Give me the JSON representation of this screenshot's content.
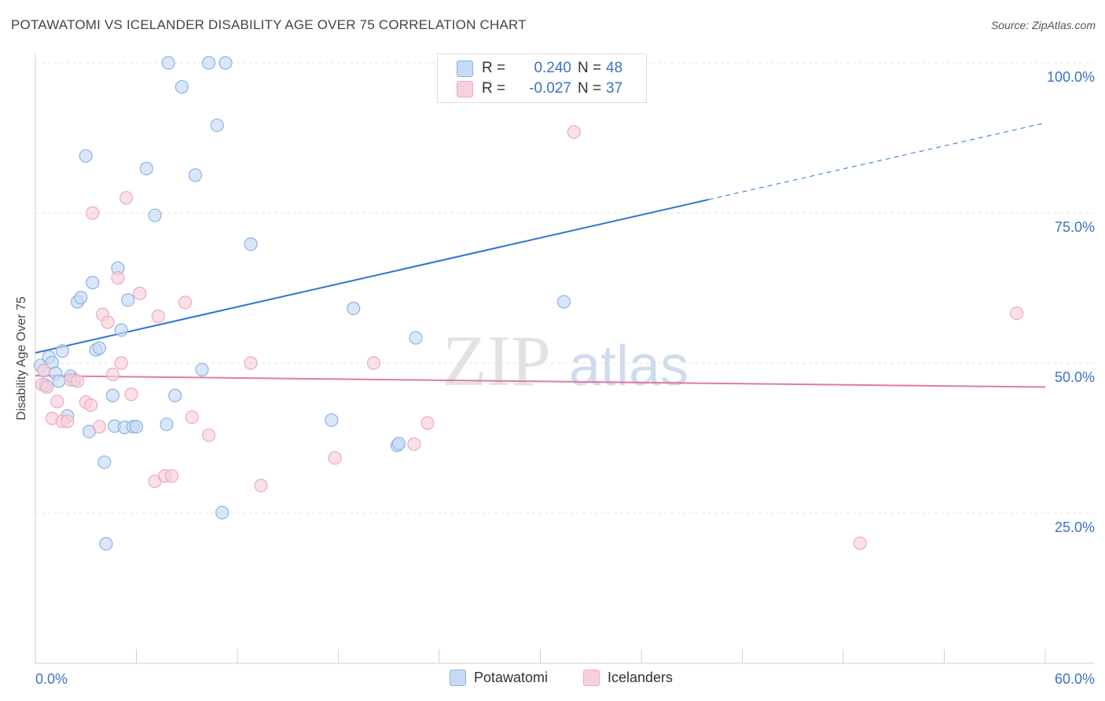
{
  "title": "POTAWATOMI VS ICELANDER DISABILITY AGE OVER 75 CORRELATION CHART",
  "source": "Source: ZipAtlas.com",
  "watermark": {
    "zip": "ZIP",
    "atlas": "atlas"
  },
  "colors": {
    "potawatomi_fill": "#c6daf5",
    "potawatomi_stroke": "#8cb3e6",
    "potawatomi_line": "#2f74d0",
    "icelanders_fill": "#f8d0dd",
    "icelanders_stroke": "#eeaabf",
    "icelanders_line": "#e07aa0",
    "axis_label_blue": "#3a72c8"
  },
  "stats": {
    "rows": [
      {
        "r_label": "R =",
        "r_value": "0.240",
        "n_label": "N =",
        "n_value": "48",
        "series": "Potawatomi"
      },
      {
        "r_label": "R =",
        "r_value": "-0.027",
        "n_label": "N =",
        "n_value": "37",
        "series": "Icelanders"
      }
    ]
  },
  "legend": {
    "items": [
      "Potawatomi",
      "Icelanders"
    ]
  },
  "chart_data": {
    "type": "scatter",
    "title": "POTAWATOMI VS ICELANDER DISABILITY AGE OVER 75 CORRELATION CHART",
    "xlabel": "",
    "ylabel": "Disability Age Over 75",
    "xlim": [
      0,
      60
    ],
    "ylim": [
      0,
      105
    ],
    "x_tick_labels": [
      "0.0%",
      "60.0%"
    ],
    "y_ticks": [
      25,
      50,
      75,
      100
    ],
    "y_tick_labels": [
      "25.0%",
      "50.0%",
      "75.0%",
      "100.0%"
    ],
    "grid": "horizontal dashed",
    "legend_position": "bottom-center",
    "series": [
      {
        "name": "Potawatomi",
        "points": [
          [
            0.3,
            49.6
          ],
          [
            0.5,
            48.7
          ],
          [
            0.6,
            46.3
          ],
          [
            0.8,
            51.0
          ],
          [
            1.0,
            50.1
          ],
          [
            1.2,
            48.3
          ],
          [
            1.4,
            47.0
          ],
          [
            1.6,
            52.0
          ],
          [
            1.9,
            41.2
          ],
          [
            2.1,
            47.8
          ],
          [
            2.3,
            47.2
          ],
          [
            2.5,
            60.2
          ],
          [
            2.7,
            60.9
          ],
          [
            3.0,
            84.5
          ],
          [
            3.2,
            38.6
          ],
          [
            3.4,
            63.4
          ],
          [
            3.6,
            52.2
          ],
          [
            3.8,
            52.5
          ],
          [
            4.1,
            33.5
          ],
          [
            4.2,
            19.9
          ],
          [
            4.6,
            44.6
          ],
          [
            4.7,
            39.5
          ],
          [
            4.9,
            65.8
          ],
          [
            5.1,
            55.5
          ],
          [
            5.3,
            39.3
          ],
          [
            5.5,
            60.5
          ],
          [
            5.8,
            39.4
          ],
          [
            6.0,
            39.4
          ],
          [
            6.6,
            82.4
          ],
          [
            7.1,
            74.6
          ],
          [
            7.8,
            39.8
          ],
          [
            7.9,
            100.0
          ],
          [
            8.3,
            44.6
          ],
          [
            8.7,
            96.0
          ],
          [
            9.5,
            81.3
          ],
          [
            9.9,
            48.9
          ],
          [
            10.3,
            100.0
          ],
          [
            10.8,
            89.6
          ],
          [
            11.1,
            25.1
          ],
          [
            11.3,
            100.0
          ],
          [
            12.8,
            69.8
          ],
          [
            17.6,
            40.5
          ],
          [
            18.9,
            59.1
          ],
          [
            21.5,
            36.3
          ],
          [
            21.6,
            36.6
          ],
          [
            22.6,
            54.2
          ],
          [
            31.4,
            60.2
          ],
          [
            35.1,
            100.0
          ]
        ]
      },
      {
        "name": "Icelanders",
        "points": [
          [
            0.4,
            46.4
          ],
          [
            0.5,
            48.8
          ],
          [
            0.7,
            46.0
          ],
          [
            1.0,
            40.8
          ],
          [
            1.3,
            43.6
          ],
          [
            1.6,
            40.3
          ],
          [
            1.9,
            40.3
          ],
          [
            2.1,
            47.2
          ],
          [
            2.5,
            47.0
          ],
          [
            3.0,
            43.5
          ],
          [
            3.3,
            43.0
          ],
          [
            3.4,
            75.0
          ],
          [
            3.8,
            39.4
          ],
          [
            4.0,
            58.1
          ],
          [
            4.3,
            56.8
          ],
          [
            4.6,
            48.1
          ],
          [
            4.9,
            64.2
          ],
          [
            5.1,
            50.0
          ],
          [
            5.4,
            77.5
          ],
          [
            5.7,
            44.8
          ],
          [
            6.2,
            61.6
          ],
          [
            7.1,
            30.3
          ],
          [
            7.3,
            57.8
          ],
          [
            7.7,
            31.2
          ],
          [
            8.1,
            31.2
          ],
          [
            8.9,
            60.1
          ],
          [
            9.3,
            41.0
          ],
          [
            10.3,
            38.0
          ],
          [
            12.8,
            50.0
          ],
          [
            13.4,
            29.6
          ],
          [
            17.8,
            34.2
          ],
          [
            20.1,
            50.0
          ],
          [
            22.5,
            36.5
          ],
          [
            23.3,
            40.0
          ],
          [
            32.0,
            88.5
          ],
          [
            49.0,
            20.0
          ],
          [
            58.3,
            58.3
          ]
        ]
      }
    ],
    "trendlines": [
      {
        "series": "Potawatomi",
        "y_at_x0": 51.7,
        "y_at_x60": 90.0,
        "solid_until_x": 40.0
      },
      {
        "series": "Icelanders",
        "y_at_x0": 47.9,
        "y_at_x60": 46.0,
        "solid_until_x": 60.0
      }
    ]
  }
}
